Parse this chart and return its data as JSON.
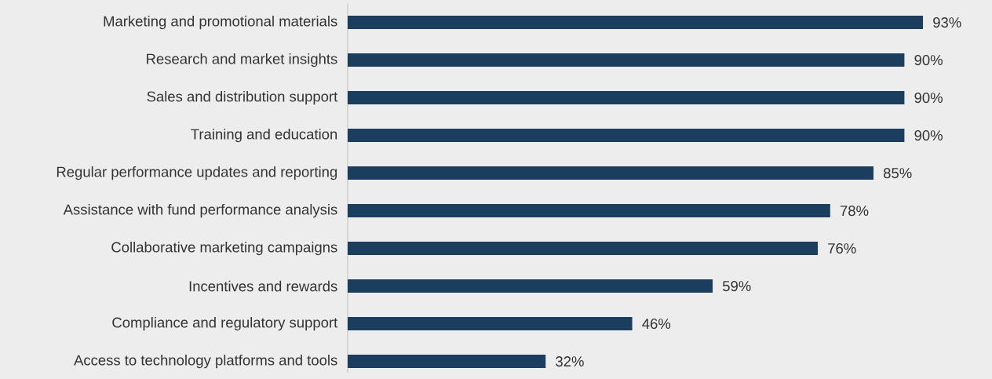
{
  "chart_data": {
    "type": "bar",
    "orientation": "horizontal",
    "categories": [
      "Marketing and promotional materials",
      "Research and market insights",
      "Sales and distribution support",
      "Training and education",
      "Regular performance updates and reporting",
      "Assistance with fund performance analysis",
      "Collaborative marketing campaigns",
      "Incentives and rewards",
      "Compliance and regulatory support",
      "Access to technology platforms and tools"
    ],
    "values": [
      93,
      90,
      90,
      90,
      85,
      78,
      76,
      59,
      46,
      32
    ],
    "value_labels": [
      "93%",
      "90%",
      "90%",
      "90%",
      "85%",
      "78%",
      "76%",
      "59%",
      "46%",
      "32%"
    ],
    "color": "#1b3d5e"
  }
}
